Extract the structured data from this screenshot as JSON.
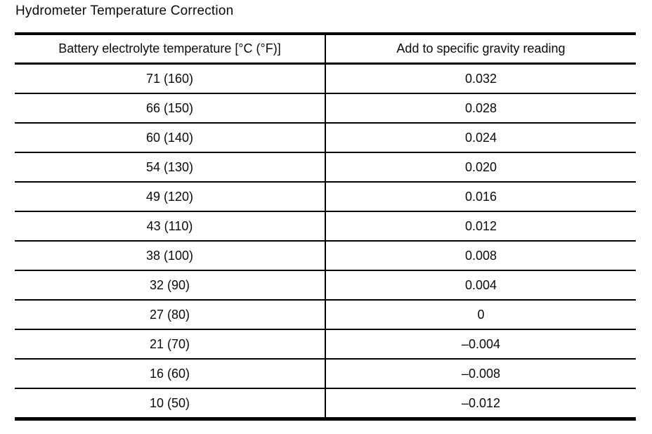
{
  "page": {
    "title": "Hydrometer Temperature Correction"
  },
  "colors": {
    "text": "#0a0a0a",
    "border": "#000000",
    "background": "#ffffff"
  },
  "table": {
    "headers": {
      "temperature": "Battery electrolyte temperature [°C (°F)]",
      "correction": "Add to specific gravity reading"
    },
    "rows": [
      {
        "temp": "71 (160)",
        "value": "0.032"
      },
      {
        "temp": "66 (150)",
        "value": "0.028"
      },
      {
        "temp": "60 (140)",
        "value": "0.024"
      },
      {
        "temp": "54 (130)",
        "value": "0.020"
      },
      {
        "temp": "49 (120)",
        "value": "0.016"
      },
      {
        "temp": "43 (110)",
        "value": "0.012"
      },
      {
        "temp": "38 (100)",
        "value": "0.008"
      },
      {
        "temp": "32 (90)",
        "value": "0.004"
      },
      {
        "temp": "27 (80)",
        "value": "0"
      },
      {
        "temp": "21 (70)",
        "value": "–0.004"
      },
      {
        "temp": "16 (60)",
        "value": "–0.008"
      },
      {
        "temp": "10 (50)",
        "value": "–0.012"
      }
    ]
  }
}
